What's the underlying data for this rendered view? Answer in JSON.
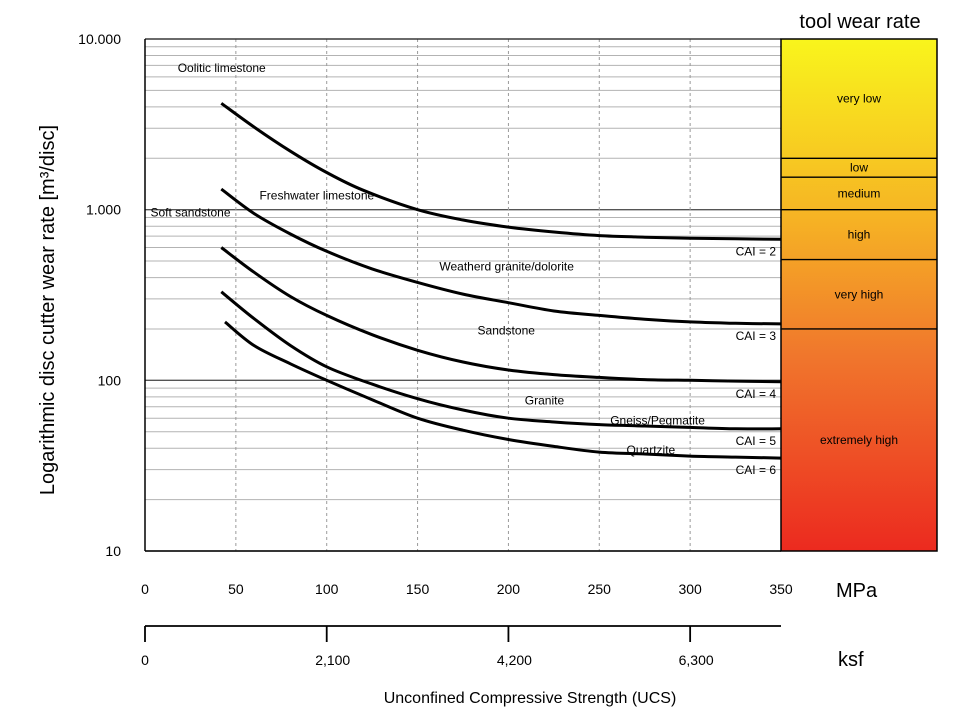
{
  "chart_data": {
    "type": "line",
    "ylabel": "Logarithmic disc cutter wear rate [m³/disc]",
    "xlabel": "Unconfined Compressive Strength (UCS)",
    "x_unit": "MPa",
    "x2_unit": "ksf",
    "y_scale": "log",
    "ylim": [
      10,
      10000
    ],
    "xlim": [
      0,
      350
    ],
    "y_ticks": [
      10,
      100,
      1000,
      10000
    ],
    "y_tick_labels": [
      "10",
      "100",
      "1.000",
      "10.000"
    ],
    "x_ticks": [
      0,
      50,
      100,
      150,
      200,
      250,
      300,
      350
    ],
    "x_tick_labels": [
      "0",
      "50",
      "100",
      "150",
      "200",
      "250",
      "300",
      "350"
    ],
    "x2_ticks": [
      0,
      100,
      200,
      300
    ],
    "x2_tick_labels": [
      "0",
      "2,100",
      "4,200",
      "6,300"
    ],
    "grid": true,
    "series": [
      {
        "name": "CAI = 2",
        "x": [
          42,
          60,
          80,
          100,
          120,
          150,
          175,
          200,
          225,
          250,
          275,
          300,
          325,
          350
        ],
        "y": [
          4200,
          3050,
          2200,
          1650,
          1300,
          1000,
          870,
          790,
          740,
          705,
          690,
          680,
          675,
          670
        ]
      },
      {
        "name": "CAI = 3",
        "x": [
          42,
          60,
          80,
          100,
          125,
          150,
          175,
          200,
          225,
          250,
          275,
          300,
          325,
          350
        ],
        "y": [
          1320,
          950,
          720,
          570,
          450,
          375,
          320,
          285,
          255,
          240,
          228,
          220,
          216,
          214
        ]
      },
      {
        "name": "CAI = 4",
        "x": [
          42,
          60,
          80,
          100,
          125,
          150,
          175,
          200,
          225,
          250,
          275,
          300,
          325,
          350
        ],
        "y": [
          600,
          430,
          310,
          240,
          185,
          150,
          128,
          115,
          108,
          104,
          101,
          100,
          99,
          98
        ]
      },
      {
        "name": "CAI = 5",
        "x": [
          42,
          60,
          80,
          100,
          125,
          150,
          175,
          200,
          225,
          250,
          275,
          300,
          325,
          350
        ],
        "y": [
          330,
          230,
          160,
          120,
          95,
          78,
          67,
          60,
          57,
          55,
          54,
          53,
          52,
          52
        ]
      },
      {
        "name": "CAI = 6",
        "x": [
          44,
          60,
          80,
          100,
          125,
          150,
          175,
          200,
          225,
          250,
          275,
          300,
          325,
          350
        ],
        "y": [
          220,
          160,
          125,
          100,
          77,
          60,
          51,
          45,
          41,
          38,
          37,
          36,
          35.5,
          35
        ]
      }
    ],
    "annotations": [
      {
        "text": "Oolitic limestone",
        "x": 18,
        "y": 6400
      },
      {
        "text": "Freshwater limestone",
        "x": 63,
        "y": 1150
      },
      {
        "text": "Soft sandstone",
        "x": 3,
        "y": 910
      },
      {
        "text": "Weatherd granite/dolorite",
        "x": 162,
        "y": 440
      },
      {
        "text": "Sandstone",
        "x": 183,
        "y": 185
      },
      {
        "text": "Granite",
        "x": 209,
        "y": 72
      },
      {
        "text": "Gneiss/Pegmatite",
        "x": 256,
        "y": 55
      },
      {
        "text": "Quartzite",
        "x": 265,
        "y": 37
      }
    ],
    "tool_wear_rate": {
      "title": "tool wear rate",
      "bands": [
        {
          "label": "very low",
          "from": 2000,
          "to": 10000,
          "color": "#f9e81a"
        },
        {
          "label": "low",
          "from": 1550,
          "to": 2000,
          "color": "#f8d21e"
        },
        {
          "label": "medium",
          "from": 1000,
          "to": 1550,
          "color": "#f6b724"
        },
        {
          "label": "high",
          "from": 510,
          "to": 1000,
          "color": "#f4a028"
        },
        {
          "label": "very high",
          "from": 200,
          "to": 510,
          "color": "#f2772a"
        },
        {
          "label": "extremely high",
          "from": 10,
          "to": 200,
          "color": "#ec3a24"
        }
      ]
    }
  }
}
